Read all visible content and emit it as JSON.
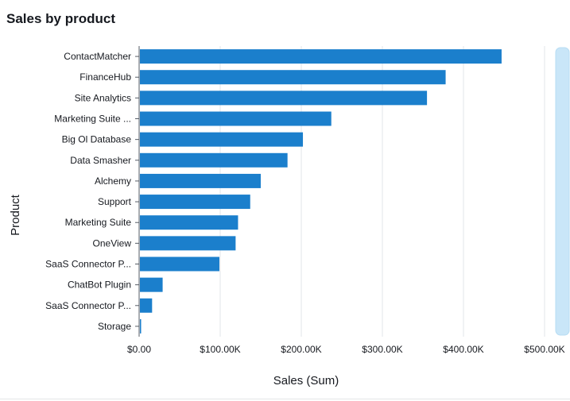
{
  "chart_data": {
    "type": "bar",
    "orientation": "horizontal",
    "title": "Sales by product",
    "xlabel": "Sales (Sum)",
    "ylabel": "Product",
    "xlim": [
      0,
      500000
    ],
    "x_ticks": [
      0,
      100000,
      200000,
      300000,
      400000,
      500000
    ],
    "x_tick_labels": [
      "$0.00",
      "$100.00K",
      "$200.00K",
      "$300.00K",
      "$400.00K",
      "$500.00K"
    ],
    "grid": "vertical",
    "bar_color": "#1b7fcc",
    "categories": [
      "ContactMatcher",
      "FinanceHub",
      "Site Analytics",
      "Marketing Suite ...",
      "Big Ol Database",
      "Data Smasher",
      "Alchemy",
      "Support",
      "Marketing Suite",
      "OneView",
      "SaaS Connector P...",
      "ChatBot Plugin",
      "SaaS Connector P...",
      "Storage"
    ],
    "values": [
      447000,
      378000,
      355000,
      237000,
      202000,
      183000,
      150000,
      137000,
      122000,
      119000,
      99000,
      29000,
      16000,
      2000
    ]
  },
  "scrollbar": {
    "color": "#c9e6f8"
  }
}
